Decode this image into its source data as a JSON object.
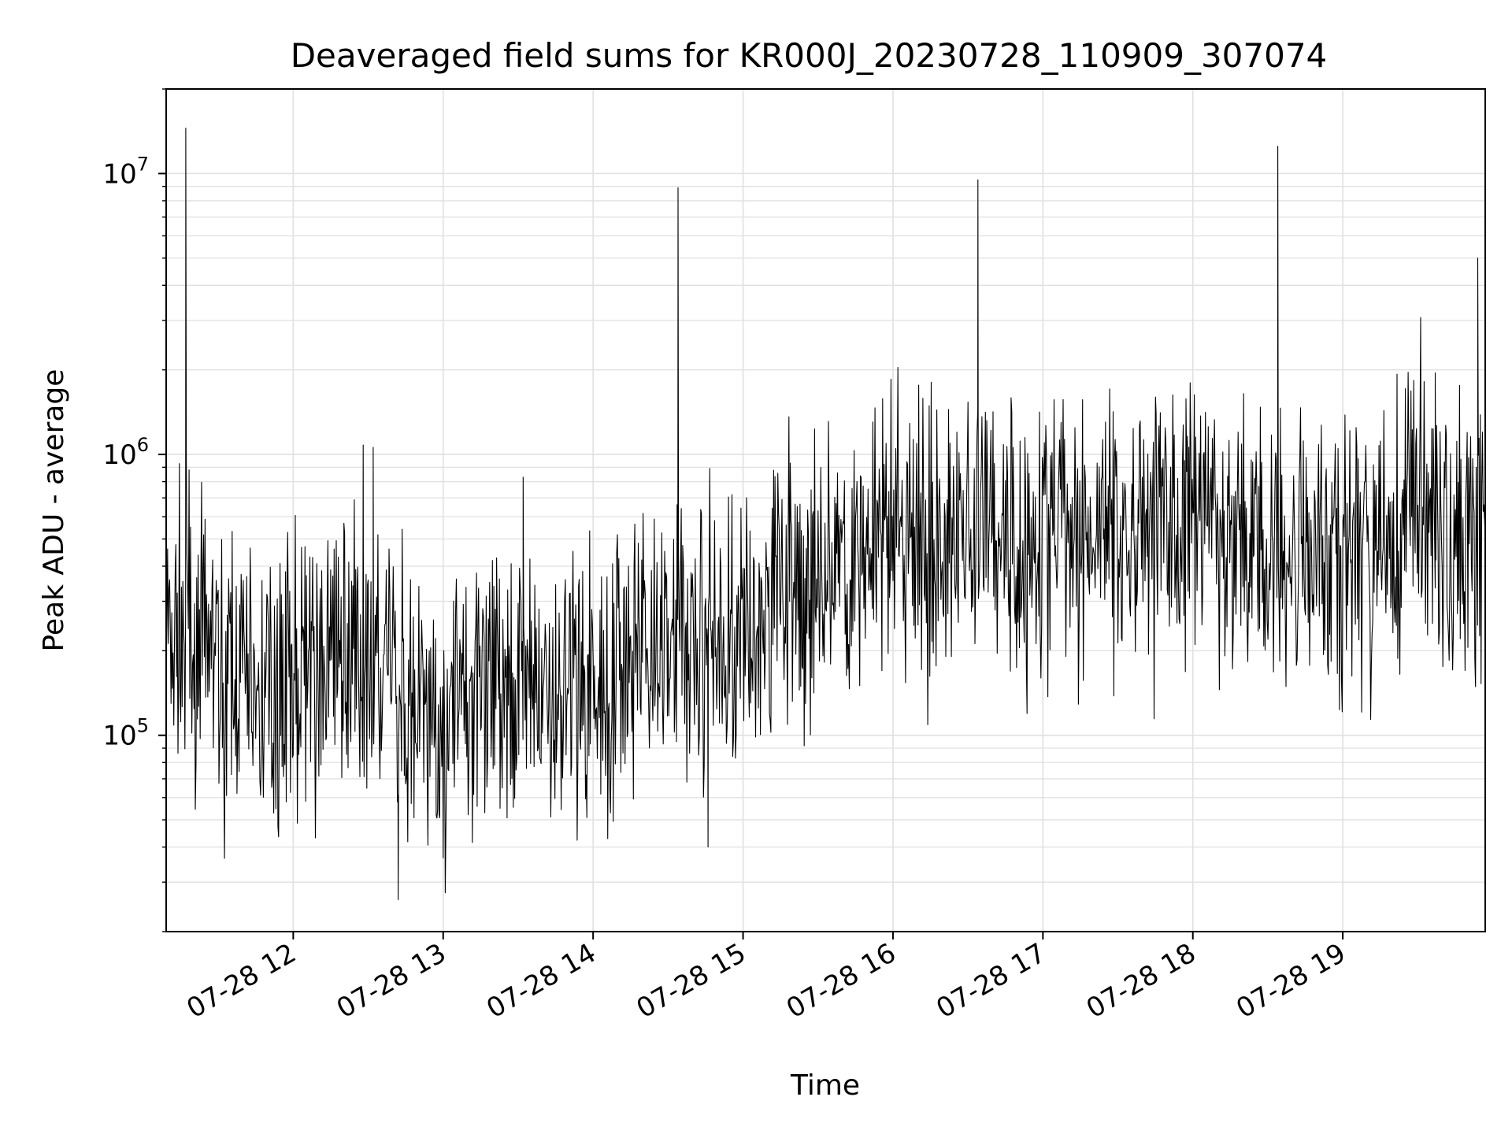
{
  "chart_data": {
    "type": "line",
    "title": "Deaveraged field sums for KR000J_20230728_110909_307074",
    "xlabel": "Time",
    "ylabel": "Peak ADU - average",
    "yscale": "log",
    "ylim": [
      20000,
      20000000
    ],
    "xlim": [
      "2023-07-28T11:09:09",
      "2023-07-28T19:57:00"
    ],
    "x_tick_labels": [
      "07-28 12",
      "07-28 13",
      "07-28 14",
      "07-28 15",
      "07-28 16",
      "07-28 17",
      "07-28 18",
      "07-28 19"
    ],
    "x_tick_times": [
      "2023-07-28T12:00:00",
      "2023-07-28T13:00:00",
      "2023-07-28T14:00:00",
      "2023-07-28T15:00:00",
      "2023-07-28T16:00:00",
      "2023-07-28T17:00:00",
      "2023-07-28T18:00:00",
      "2023-07-28T19:00:00"
    ],
    "y_ticks": [
      {
        "value": 100000,
        "base": "10",
        "exp": "5"
      },
      {
        "value": 1000000,
        "base": "10",
        "exp": "6"
      },
      {
        "value": 10000000,
        "base": "10",
        "exp": "7"
      }
    ],
    "grid": true,
    "line_color": "#000000",
    "grid_color": "#e0e0e0",
    "series": [
      {
        "time": [
          "2023-07-28T11:09:09",
          "2023-07-28T11:20:00",
          "2023-07-28T11:30:00",
          "2023-07-28T11:45:00",
          "2023-07-28T12:00:00",
          "2023-07-28T12:15:00",
          "2023-07-28T12:30:00",
          "2023-07-28T12:45:00",
          "2023-07-28T13:00:00",
          "2023-07-28T13:15:00",
          "2023-07-28T13:30:00",
          "2023-07-28T13:45:00",
          "2023-07-28T14:00:00",
          "2023-07-28T14:15:00",
          "2023-07-28T14:30:00",
          "2023-07-28T14:45:00",
          "2023-07-28T15:00:00",
          "2023-07-28T15:15:00",
          "2023-07-28T15:30:00",
          "2023-07-28T15:45:00",
          "2023-07-28T16:00:00",
          "2023-07-28T16:15:00",
          "2023-07-28T16:30:00",
          "2023-07-28T16:45:00",
          "2023-07-28T17:00:00",
          "2023-07-28T17:15:00",
          "2023-07-28T17:30:00",
          "2023-07-28T17:45:00",
          "2023-07-28T18:00:00",
          "2023-07-28T18:15:00",
          "2023-07-28T18:30:00",
          "2023-07-28T18:45:00",
          "2023-07-28T19:00:00",
          "2023-07-28T19:15:00",
          "2023-07-28T19:30:00",
          "2023-07-28T19:45:00",
          "2023-07-28T19:57:00"
        ],
        "values": [
          220000,
          250000,
          170000,
          150000,
          160000,
          170000,
          200000,
          120000,
          120000,
          130000,
          180000,
          150000,
          150000,
          190000,
          210000,
          210000,
          250000,
          300000,
          350000,
          450000,
          500000,
          480000,
          520000,
          520000,
          500000,
          520000,
          550000,
          540000,
          520000,
          500000,
          480000,
          460000,
          470000,
          480000,
          700000,
          450000,
          550000
        ],
        "spikes": [
          {
            "time": "2023-07-28T11:17:00",
            "value": 14500000
          },
          {
            "time": "2023-07-28T12:28:00",
            "value": 1080000
          },
          {
            "time": "2023-07-28T12:32:00",
            "value": 1060000
          },
          {
            "time": "2023-07-28T12:42:00",
            "value": 26000
          },
          {
            "time": "2023-07-28T13:32:00",
            "value": 830000
          },
          {
            "time": "2023-07-28T14:34:00",
            "value": 8900000
          },
          {
            "time": "2023-07-28T14:46:00",
            "value": 40000
          },
          {
            "time": "2023-07-28T16:34:00",
            "value": 9500000
          },
          {
            "time": "2023-07-28T18:34:00",
            "value": 12500000
          },
          {
            "time": "2023-07-28T19:37:00",
            "value": 1950000
          },
          {
            "time": "2023-07-28T19:54:00",
            "value": 5000000
          }
        ]
      }
    ]
  }
}
